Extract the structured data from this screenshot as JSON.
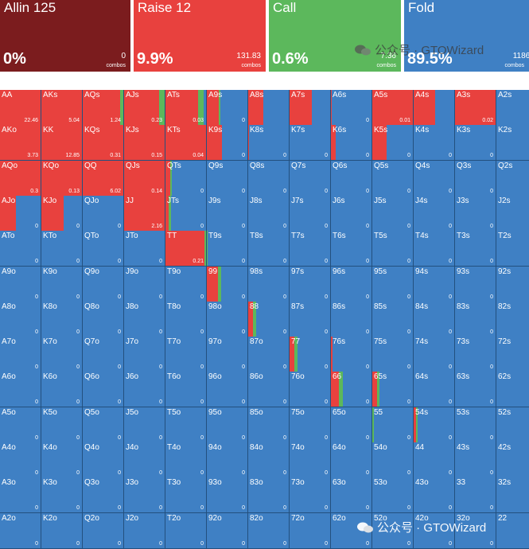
{
  "actions": [
    {
      "key": "allin",
      "name": "Allin 125",
      "percent": "0%",
      "combos": "0",
      "combos_label": "combos",
      "color": "#7b1c1e"
    },
    {
      "key": "raise",
      "name": "Raise 12",
      "percent": "9.9%",
      "combos": "131.83",
      "combos_label": "combos",
      "color": "#e8413e"
    },
    {
      "key": "call",
      "name": "Call",
      "percent": "0.6%",
      "combos": "7.36",
      "combos_label": "combos",
      "color": "#5cb85c"
    },
    {
      "key": "fold",
      "name": "Fold",
      "percent": "89.5%",
      "combos": "1186.",
      "combos_label": "combos",
      "color": "#3f80c4"
    }
  ],
  "colors": {
    "raise": "#e8413e",
    "call": "#5cb85c",
    "fold": "#3f80c4",
    "grid_line": "#23507e"
  },
  "watermark": {
    "top": "公众号 · GTOWizard",
    "bottom": "公众号 · GTOWizard",
    "logo_icon": "wechat-icon"
  },
  "grid": {
    "rows": [
      [
        {
          "h": "AA",
          "v": "22.46",
          "r": 1,
          "c": 0
        },
        {
          "h": "AKs",
          "v": "5.04",
          "r": 1,
          "c": 0
        },
        {
          "h": "AQs",
          "v": "1.24",
          "r": 0.93,
          "c": 0.07
        },
        {
          "h": "AJs",
          "v": "0.23",
          "r": 0.86,
          "c": 0.14
        },
        {
          "h": "ATs",
          "v": "0.03",
          "r": 0.8,
          "c": 0.15
        },
        {
          "h": "A9s",
          "v": "0",
          "r": 0.3,
          "c": 0.03
        },
        {
          "h": "A8s",
          "v": "",
          "r": 0.38,
          "c": 0
        },
        {
          "h": "A7s",
          "v": "",
          "r": 0.55,
          "c": 0
        },
        {
          "h": "A6s",
          "v": "0",
          "r": 0.02,
          "c": 0
        },
        {
          "h": "A5s",
          "v": "0.01",
          "r": 1,
          "c": 0
        },
        {
          "h": "A4s",
          "v": "",
          "r": 0.53,
          "c": 0
        },
        {
          "h": "A3s",
          "v": "0.02",
          "r": 1,
          "c": 0
        },
        {
          "h": "A2s",
          "v": "",
          "r": 0,
          "c": 0
        }
      ],
      [
        {
          "h": "AKo",
          "v": "3.73",
          "r": 1,
          "c": 0
        },
        {
          "h": "KK",
          "v": "12.85",
          "r": 1,
          "c": 0
        },
        {
          "h": "KQs",
          "v": "0.31",
          "r": 1,
          "c": 0
        },
        {
          "h": "KJs",
          "v": "0.15",
          "r": 1,
          "c": 0
        },
        {
          "h": "KTs",
          "v": "0.04",
          "r": 1,
          "c": 0
        },
        {
          "h": "K9s",
          "v": "0",
          "r": 0.38,
          "c": 0
        },
        {
          "h": "K8s",
          "v": "0",
          "r": 0.02,
          "c": 0
        },
        {
          "h": "K7s",
          "v": "0",
          "r": 0,
          "c": 0
        },
        {
          "h": "K6s",
          "v": "0",
          "r": 0.12,
          "c": 0
        },
        {
          "h": "K5s",
          "v": "0",
          "r": 0.35,
          "c": 0
        },
        {
          "h": "K4s",
          "v": "0",
          "r": 0,
          "c": 0
        },
        {
          "h": "K3s",
          "v": "0",
          "r": 0,
          "c": 0
        },
        {
          "h": "K2s",
          "v": "0",
          "r": 0,
          "c": 0
        }
      ],
      [
        {
          "h": "AQo",
          "v": "0.3",
          "r": 1,
          "c": 0
        },
        {
          "h": "KQo",
          "v": "0.13",
          "r": 1,
          "c": 0
        },
        {
          "h": "QQ",
          "v": "6.02",
          "r": 1,
          "c": 0
        },
        {
          "h": "QJs",
          "v": "0.14",
          "r": 1,
          "c": 0
        },
        {
          "h": "QTs",
          "v": "0",
          "r": 0.12,
          "c": 0.04
        },
        {
          "h": "Q9s",
          "v": "0",
          "r": 0,
          "c": 0
        },
        {
          "h": "Q8s",
          "v": "0",
          "r": 0,
          "c": 0
        },
        {
          "h": "Q7s",
          "v": "0",
          "r": 0,
          "c": 0
        },
        {
          "h": "Q6s",
          "v": "0",
          "r": 0,
          "c": 0
        },
        {
          "h": "Q5s",
          "v": "0",
          "r": 0,
          "c": 0
        },
        {
          "h": "Q4s",
          "v": "0",
          "r": 0,
          "c": 0
        },
        {
          "h": "Q3s",
          "v": "0",
          "r": 0,
          "c": 0
        },
        {
          "h": "Q2s",
          "v": "0",
          "r": 0,
          "c": 0
        }
      ],
      [
        {
          "h": "AJo",
          "v": "0",
          "r": 0.4,
          "c": 0
        },
        {
          "h": "KJo",
          "v": "0",
          "r": 0.55,
          "c": 0
        },
        {
          "h": "QJo",
          "v": "0",
          "r": 0,
          "c": 0
        },
        {
          "h": "JJ",
          "v": "2.16",
          "r": 1,
          "c": 0
        },
        {
          "h": "JTs",
          "v": "0",
          "r": 0.08,
          "c": 0.06
        },
        {
          "h": "J9s",
          "v": "0",
          "r": 0,
          "c": 0
        },
        {
          "h": "J8s",
          "v": "0",
          "r": 0,
          "c": 0
        },
        {
          "h": "J7s",
          "v": "0",
          "r": 0,
          "c": 0
        },
        {
          "h": "J6s",
          "v": "0",
          "r": 0,
          "c": 0
        },
        {
          "h": "J5s",
          "v": "0",
          "r": 0,
          "c": 0
        },
        {
          "h": "J4s",
          "v": "0",
          "r": 0,
          "c": 0
        },
        {
          "h": "J3s",
          "v": "0",
          "r": 0,
          "c": 0
        },
        {
          "h": "J2s",
          "v": "0",
          "r": 0,
          "c": 0
        }
      ],
      [
        {
          "h": "ATo",
          "v": "0",
          "r": 0,
          "c": 0
        },
        {
          "h": "KTo",
          "v": "0",
          "r": 0,
          "c": 0
        },
        {
          "h": "QTo",
          "v": "0",
          "r": 0,
          "c": 0
        },
        {
          "h": "JTo",
          "v": "0",
          "r": 0,
          "c": 0
        },
        {
          "h": "TT",
          "v": "0.21",
          "r": 0.96,
          "c": 0.04
        },
        {
          "h": "T9s",
          "v": "0",
          "r": 0,
          "c": 0.02
        },
        {
          "h": "T8s",
          "v": "0",
          "r": 0,
          "c": 0
        },
        {
          "h": "T7s",
          "v": "0",
          "r": 0,
          "c": 0
        },
        {
          "h": "T6s",
          "v": "0",
          "r": 0,
          "c": 0
        },
        {
          "h": "T5s",
          "v": "0",
          "r": 0,
          "c": 0
        },
        {
          "h": "T4s",
          "v": "0",
          "r": 0,
          "c": 0
        },
        {
          "h": "T3s",
          "v": "0",
          "r": 0,
          "c": 0
        },
        {
          "h": "T2s",
          "v": "0",
          "r": 0,
          "c": 0
        }
      ],
      [
        {
          "h": "A9o",
          "v": "0",
          "r": 0,
          "c": 0
        },
        {
          "h": "K9o",
          "v": "0",
          "r": 0,
          "c": 0
        },
        {
          "h": "Q9o",
          "v": "0",
          "r": 0,
          "c": 0
        },
        {
          "h": "J9o",
          "v": "0",
          "r": 0,
          "c": 0
        },
        {
          "h": "T9o",
          "v": "0",
          "r": 0,
          "c": 0
        },
        {
          "h": "99",
          "v": "0",
          "r": 0.28,
          "c": 0.08
        },
        {
          "h": "98s",
          "v": "0",
          "r": 0,
          "c": 0
        },
        {
          "h": "97s",
          "v": "0",
          "r": 0,
          "c": 0
        },
        {
          "h": "96s",
          "v": "0",
          "r": 0,
          "c": 0
        },
        {
          "h": "95s",
          "v": "0",
          "r": 0,
          "c": 0
        },
        {
          "h": "94s",
          "v": "0",
          "r": 0,
          "c": 0
        },
        {
          "h": "93s",
          "v": "0",
          "r": 0,
          "c": 0
        },
        {
          "h": "92s",
          "v": "0",
          "r": 0,
          "c": 0
        }
      ],
      [
        {
          "h": "A8o",
          "v": "0",
          "r": 0,
          "c": 0
        },
        {
          "h": "K8o",
          "v": "0",
          "r": 0,
          "c": 0
        },
        {
          "h": "Q8o",
          "v": "0",
          "r": 0,
          "c": 0
        },
        {
          "h": "J8o",
          "v": "0",
          "r": 0,
          "c": 0
        },
        {
          "h": "T8o",
          "v": "0",
          "r": 0,
          "c": 0
        },
        {
          "h": "98o",
          "v": "0",
          "r": 0,
          "c": 0
        },
        {
          "h": "88",
          "v": "0",
          "r": 0.12,
          "c": 0.08
        },
        {
          "h": "87s",
          "v": "0",
          "r": 0,
          "c": 0
        },
        {
          "h": "86s",
          "v": "0",
          "r": 0,
          "c": 0
        },
        {
          "h": "85s",
          "v": "0",
          "r": 0,
          "c": 0
        },
        {
          "h": "84s",
          "v": "0",
          "r": 0,
          "c": 0
        },
        {
          "h": "83s",
          "v": "0",
          "r": 0,
          "c": 0
        },
        {
          "h": "82s",
          "v": "0",
          "r": 0,
          "c": 0
        }
      ],
      [
        {
          "h": "A7o",
          "v": "0",
          "r": 0,
          "c": 0
        },
        {
          "h": "K7o",
          "v": "0",
          "r": 0,
          "c": 0
        },
        {
          "h": "Q7o",
          "v": "0",
          "r": 0,
          "c": 0
        },
        {
          "h": "J7o",
          "v": "0",
          "r": 0,
          "c": 0
        },
        {
          "h": "T7o",
          "v": "0",
          "r": 0,
          "c": 0
        },
        {
          "h": "97o",
          "v": "0",
          "r": 0,
          "c": 0
        },
        {
          "h": "87o",
          "v": "0",
          "r": 0,
          "c": 0
        },
        {
          "h": "77",
          "v": "0",
          "r": 0.12,
          "c": 0.08
        },
        {
          "h": "76s",
          "v": "0",
          "r": 0.04,
          "c": 0
        },
        {
          "h": "75s",
          "v": "0",
          "r": 0,
          "c": 0
        },
        {
          "h": "74s",
          "v": "0",
          "r": 0,
          "c": 0
        },
        {
          "h": "73s",
          "v": "0",
          "r": 0,
          "c": 0
        },
        {
          "h": "72s",
          "v": "0",
          "r": 0,
          "c": 0
        }
      ],
      [
        {
          "h": "A6o",
          "v": "0",
          "r": 0,
          "c": 0
        },
        {
          "h": "K6o",
          "v": "0",
          "r": 0,
          "c": 0
        },
        {
          "h": "Q6o",
          "v": "0",
          "r": 0,
          "c": 0
        },
        {
          "h": "J6o",
          "v": "0",
          "r": 0,
          "c": 0
        },
        {
          "h": "T6o",
          "v": "0",
          "r": 0,
          "c": 0
        },
        {
          "h": "96o",
          "v": "0",
          "r": 0,
          "c": 0
        },
        {
          "h": "86o",
          "v": "0",
          "r": 0,
          "c": 0
        },
        {
          "h": "76o",
          "v": "0",
          "r": 0,
          "c": 0
        },
        {
          "h": "66",
          "v": "0",
          "r": 0.2,
          "c": 0.1
        },
        {
          "h": "65s",
          "v": "0",
          "r": 0.12,
          "c": 0.06
        },
        {
          "h": "64s",
          "v": "0",
          "r": 0,
          "c": 0
        },
        {
          "h": "63s",
          "v": "0",
          "r": 0,
          "c": 0
        },
        {
          "h": "62s",
          "v": "0",
          "r": 0,
          "c": 0
        }
      ],
      [
        {
          "h": "A5o",
          "v": "0",
          "r": 0,
          "c": 0
        },
        {
          "h": "K5o",
          "v": "0",
          "r": 0,
          "c": 0
        },
        {
          "h": "Q5o",
          "v": "0",
          "r": 0,
          "c": 0
        },
        {
          "h": "J5o",
          "v": "0",
          "r": 0,
          "c": 0
        },
        {
          "h": "T5o",
          "v": "0",
          "r": 0,
          "c": 0
        },
        {
          "h": "95o",
          "v": "0",
          "r": 0,
          "c": 0
        },
        {
          "h": "85o",
          "v": "0",
          "r": 0,
          "c": 0
        },
        {
          "h": "75o",
          "v": "0",
          "r": 0,
          "c": 0
        },
        {
          "h": "65o",
          "v": "0",
          "r": 0,
          "c": 0
        },
        {
          "h": "55",
          "v": "0",
          "r": 0,
          "c": 0.03
        },
        {
          "h": "54s",
          "v": "0",
          "r": 0.06,
          "c": 0.04
        },
        {
          "h": "53s",
          "v": "0",
          "r": 0,
          "c": 0
        },
        {
          "h": "52s",
          "v": "0",
          "r": 0,
          "c": 0
        }
      ],
      [
        {
          "h": "A4o",
          "v": "0",
          "r": 0,
          "c": 0
        },
        {
          "h": "K4o",
          "v": "0",
          "r": 0,
          "c": 0
        },
        {
          "h": "Q4o",
          "v": "0",
          "r": 0,
          "c": 0
        },
        {
          "h": "J4o",
          "v": "0",
          "r": 0,
          "c": 0
        },
        {
          "h": "T4o",
          "v": "0",
          "r": 0,
          "c": 0
        },
        {
          "h": "94o",
          "v": "0",
          "r": 0,
          "c": 0
        },
        {
          "h": "84o",
          "v": "0",
          "r": 0,
          "c": 0
        },
        {
          "h": "74o",
          "v": "0",
          "r": 0,
          "c": 0
        },
        {
          "h": "64o",
          "v": "0",
          "r": 0,
          "c": 0
        },
        {
          "h": "54o",
          "v": "0",
          "r": 0,
          "c": 0
        },
        {
          "h": "44",
          "v": "0",
          "r": 0,
          "c": 0
        },
        {
          "h": "43s",
          "v": "0",
          "r": 0,
          "c": 0
        },
        {
          "h": "42s",
          "v": "0",
          "r": 0,
          "c": 0
        }
      ],
      [
        {
          "h": "A3o",
          "v": "0",
          "r": 0,
          "c": 0
        },
        {
          "h": "K3o",
          "v": "0",
          "r": 0,
          "c": 0
        },
        {
          "h": "Q3o",
          "v": "0",
          "r": 0,
          "c": 0
        },
        {
          "h": "J3o",
          "v": "0",
          "r": 0,
          "c": 0
        },
        {
          "h": "T3o",
          "v": "0",
          "r": 0,
          "c": 0
        },
        {
          "h": "93o",
          "v": "0",
          "r": 0,
          "c": 0
        },
        {
          "h": "83o",
          "v": "0",
          "r": 0,
          "c": 0
        },
        {
          "h": "73o",
          "v": "0",
          "r": 0,
          "c": 0
        },
        {
          "h": "63o",
          "v": "0",
          "r": 0,
          "c": 0
        },
        {
          "h": "53o",
          "v": "0",
          "r": 0,
          "c": 0
        },
        {
          "h": "43o",
          "v": "0",
          "r": 0,
          "c": 0
        },
        {
          "h": "33",
          "v": "0",
          "r": 0,
          "c": 0
        },
        {
          "h": "32s",
          "v": "0",
          "r": 0,
          "c": 0
        }
      ],
      [
        {
          "h": "A2o",
          "v": "0",
          "r": 0,
          "c": 0
        },
        {
          "h": "K2o",
          "v": "0",
          "r": 0,
          "c": 0
        },
        {
          "h": "Q2o",
          "v": "0",
          "r": 0,
          "c": 0
        },
        {
          "h": "J2o",
          "v": "0",
          "r": 0,
          "c": 0
        },
        {
          "h": "T2o",
          "v": "0",
          "r": 0,
          "c": 0
        },
        {
          "h": "92o",
          "v": "0",
          "r": 0,
          "c": 0
        },
        {
          "h": "82o",
          "v": "0",
          "r": 0,
          "c": 0
        },
        {
          "h": "72o",
          "v": "0",
          "r": 0,
          "c": 0
        },
        {
          "h": "62o",
          "v": "0",
          "r": 0,
          "c": 0
        },
        {
          "h": "52o",
          "v": "0",
          "r": 0,
          "c": 0
        },
        {
          "h": "42o",
          "v": "0",
          "r": 0,
          "c": 0
        },
        {
          "h": "32o",
          "v": "0",
          "r": 0,
          "c": 0
        },
        {
          "h": "22",
          "v": "0",
          "r": 0,
          "c": 0
        }
      ]
    ]
  }
}
